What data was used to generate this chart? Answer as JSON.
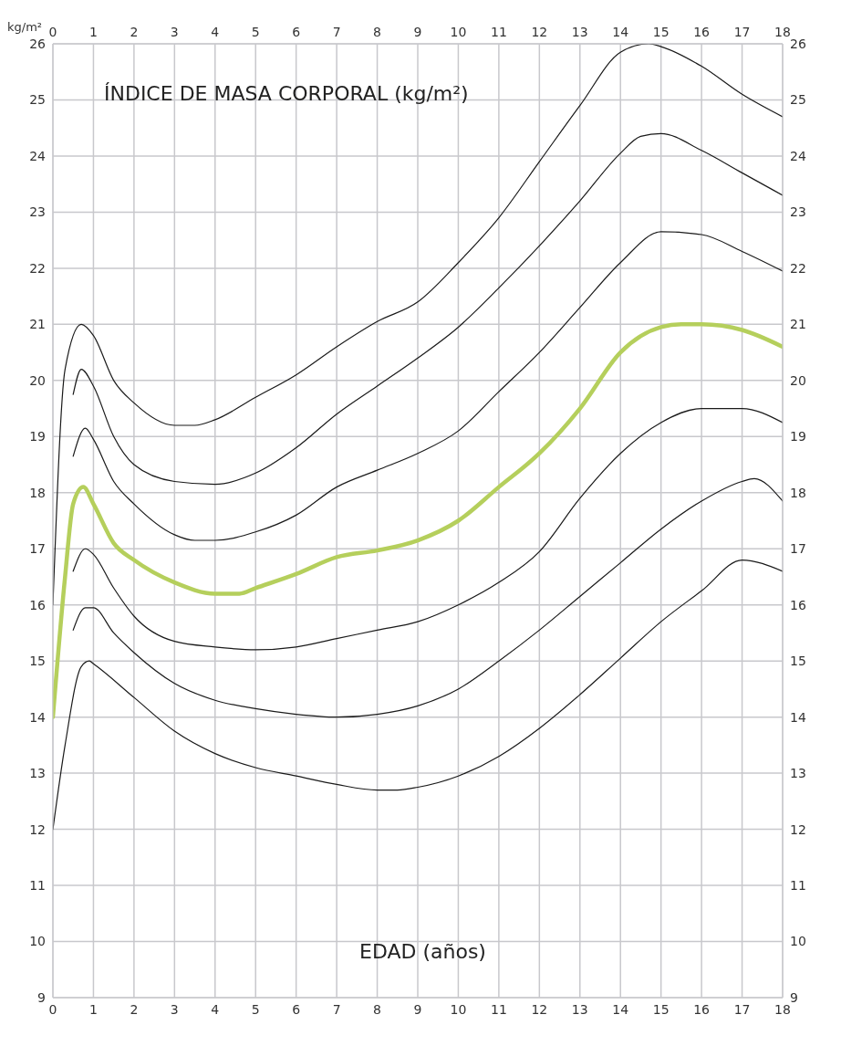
{
  "chart_data": {
    "type": "line",
    "title": "ÍNDICE DE MASA CORPORAL (kg/m²)",
    "xlabel": "EDAD (años)",
    "ylabel": "kg/m²",
    "xlim": [
      0,
      18
    ],
    "xticks": [
      0,
      1,
      2,
      3,
      4,
      5,
      6,
      7,
      8,
      9,
      10,
      11,
      12,
      13,
      14,
      15,
      16,
      17,
      18
    ],
    "x2lim": [
      0,
      18
    ],
    "x2ticks": [
      0,
      1,
      2,
      3,
      4,
      5,
      6,
      7,
      8,
      9,
      10,
      11,
      12,
      13,
      14,
      15,
      16,
      17,
      18
    ],
    "ylim": [
      9,
      26
    ],
    "yticks": [
      9,
      10,
      11,
      12,
      13,
      14,
      15,
      16,
      17,
      18,
      19,
      20,
      21,
      22,
      23,
      24,
      25,
      26
    ],
    "y2lim": [
      9,
      26
    ],
    "y2ticks": [
      9,
      10,
      11,
      12,
      13,
      14,
      15,
      16,
      17,
      18,
      19,
      20,
      21,
      22,
      23,
      24,
      25,
      26
    ],
    "grid": true,
    "series": [
      {
        "color": "#1a1a1a",
        "x": [
          0,
          0.3,
          0.7,
          1,
          1.5,
          2,
          3,
          3.5,
          4,
          5,
          6,
          7,
          8,
          9,
          10,
          11,
          12,
          13,
          14,
          14.7,
          15,
          16,
          17,
          18
        ],
        "values": [
          16,
          20.2,
          21.0,
          20.8,
          20.0,
          19.6,
          19.2,
          19.2,
          19.3,
          19.7,
          20.1,
          20.6,
          21.05,
          21.4,
          22.1,
          22.9,
          23.9,
          24.9,
          25.85,
          26.0,
          25.95,
          25.6,
          25.1,
          24.7
        ]
      },
      {
        "color": "#1a1a1a",
        "x": [
          0.5,
          0.7,
          1,
          1.5,
          2,
          3,
          4,
          5,
          6,
          7,
          8,
          9,
          10,
          11,
          12,
          13,
          14,
          14.5,
          15,
          16,
          17,
          18
        ],
        "values": [
          19.75,
          20.2,
          19.9,
          19.0,
          18.5,
          18.2,
          18.15,
          18.35,
          18.8,
          19.4,
          19.9,
          20.4,
          20.95,
          21.65,
          22.4,
          23.2,
          24.05,
          24.35,
          24.4,
          24.1,
          23.7,
          23.3
        ]
      },
      {
        "color": "#1a1a1a",
        "x": [
          0.5,
          0.8,
          1,
          1.5,
          2,
          3,
          3.5,
          4,
          5,
          6,
          7,
          8,
          9,
          10,
          11,
          12,
          13,
          14,
          15,
          16,
          17,
          18
        ],
        "values": [
          18.65,
          19.15,
          18.95,
          18.2,
          17.8,
          17.25,
          17.15,
          17.15,
          17.3,
          17.6,
          18.1,
          18.4,
          18.7,
          19.1,
          19.8,
          20.5,
          21.3,
          22.1,
          22.65,
          22.6,
          22.3,
          21.95
        ]
      },
      {
        "color": "#b5cf5c",
        "x": [
          0,
          0.3,
          0.5,
          0.75,
          1,
          1.5,
          2,
          3,
          4,
          4.6,
          5,
          6,
          7,
          8,
          9,
          10,
          11,
          12,
          13,
          14,
          15,
          15.5,
          16,
          17,
          18
        ],
        "values": [
          14,
          16.5,
          17.8,
          18.1,
          17.8,
          17.1,
          16.8,
          16.4,
          16.2,
          16.2,
          16.3,
          16.55,
          16.85,
          16.97,
          17.15,
          17.5,
          18.1,
          18.7,
          19.5,
          20.5,
          20.95,
          21.0,
          21.0,
          20.9,
          20.6
        ]
      },
      {
        "color": "#1a1a1a",
        "x": [
          0.5,
          0.8,
          1,
          1.5,
          2,
          3,
          4,
          5,
          6,
          7,
          8,
          9,
          10,
          11,
          12,
          13,
          14,
          15,
          16,
          17,
          18
        ],
        "values": [
          16.6,
          17.0,
          16.9,
          16.3,
          15.8,
          15.35,
          15.25,
          15.2,
          15.25,
          15.4,
          15.55,
          15.7,
          16.0,
          16.4,
          16.95,
          17.9,
          18.7,
          19.25,
          19.5,
          19.5,
          19.25
        ]
      },
      {
        "color": "#1a1a1a",
        "x": [
          0.5,
          0.8,
          1,
          1.5,
          2,
          3,
          4,
          5,
          6,
          7,
          8,
          9,
          10,
          11,
          12,
          13,
          14,
          15,
          16,
          17,
          17.3,
          18
        ],
        "values": [
          15.55,
          15.95,
          15.95,
          15.5,
          15.15,
          14.6,
          14.3,
          14.15,
          14.05,
          14.0,
          14.05,
          14.2,
          14.5,
          15.0,
          15.55,
          16.15,
          16.75,
          17.35,
          17.85,
          18.2,
          18.25,
          17.85
        ]
      },
      {
        "color": "#1a1a1a",
        "x": [
          0,
          0.3,
          0.7,
          0.9,
          1,
          2,
          3,
          4,
          5,
          6,
          7,
          8,
          8.5,
          9,
          10,
          11,
          12,
          13,
          14,
          15,
          16,
          17,
          18
        ],
        "values": [
          12,
          13.5,
          14.9,
          15.0,
          14.95,
          14.35,
          13.75,
          13.35,
          13.1,
          12.95,
          12.8,
          12.7,
          12.7,
          12.75,
          12.95,
          13.3,
          13.8,
          14.4,
          15.05,
          15.7,
          16.25,
          16.8,
          16.6
        ]
      }
    ]
  }
}
